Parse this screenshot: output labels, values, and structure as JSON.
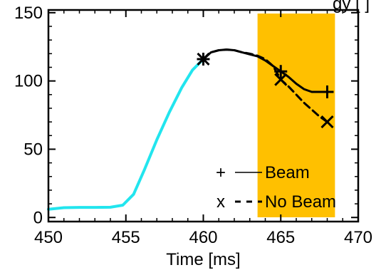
{
  "chart_data": {
    "type": "line",
    "title": "gy [  ]",
    "xlabel": "Time [ms]",
    "ylabel": "",
    "xlim": [
      450,
      470
    ],
    "ylim": [
      -3,
      152
    ],
    "xticks": [
      450,
      455,
      460,
      465,
      470
    ],
    "yticks": [
      0,
      50,
      100,
      150
    ],
    "xtick_labels": [
      "450",
      "455",
      "460",
      "465",
      "470"
    ],
    "ytick_labels": [
      "0",
      "50",
      "100",
      "150"
    ],
    "grid": false,
    "legend_position": "bottom-right",
    "shaded_region": {
      "x": [
        463.5,
        468.5
      ],
      "color": "#FFC000"
    },
    "series": [
      {
        "style": "cyan-solid",
        "color": "#22E5EE",
        "x": [
          450,
          451,
          452,
          453,
          454,
          454.8,
          455.5,
          456.2,
          457,
          457.8,
          458.6,
          459.3,
          460
        ],
        "y": [
          6,
          7.2,
          7.4,
          7.4,
          7.5,
          9,
          17,
          35,
          57,
          77,
          95,
          108,
          116
        ]
      },
      {
        "name": "Beam",
        "style": "black-solid",
        "color": "#000000",
        "marker": "+",
        "x": [
          460,
          460.5,
          461,
          461.5,
          462,
          462.5,
          463,
          463.5,
          464,
          464.5,
          465,
          465.5,
          466,
          466.5,
          467,
          467.5,
          468
        ],
        "y": [
          116,
          121,
          122.5,
          123,
          122.5,
          121,
          119.5,
          118,
          115,
          111,
          107,
          103,
          98,
          94,
          92,
          92,
          92
        ],
        "marked_points": [
          [
            460,
            116
          ],
          [
            465,
            107
          ],
          [
            468,
            92
          ]
        ]
      },
      {
        "name": "No Beam",
        "style": "black-dashed",
        "color": "#000000",
        "marker": "x",
        "x": [
          460,
          460.5,
          461,
          461.5,
          462,
          462.5,
          463,
          463.5,
          464,
          464.5,
          465,
          465.5,
          466,
          466.5,
          467,
          467.5,
          468
        ],
        "y": [
          116,
          121,
          122.5,
          123,
          122.5,
          121,
          120,
          118.5,
          116,
          111,
          101,
          96,
          90,
          84,
          79,
          74,
          70
        ],
        "marked_points": [
          [
            460,
            116
          ],
          [
            465,
            101
          ],
          [
            468,
            70
          ]
        ]
      }
    ],
    "legend": [
      {
        "symbol": "+",
        "line": "solid",
        "label": "Beam"
      },
      {
        "symbol": "x",
        "line": "dashed",
        "label": "No Beam"
      }
    ]
  }
}
